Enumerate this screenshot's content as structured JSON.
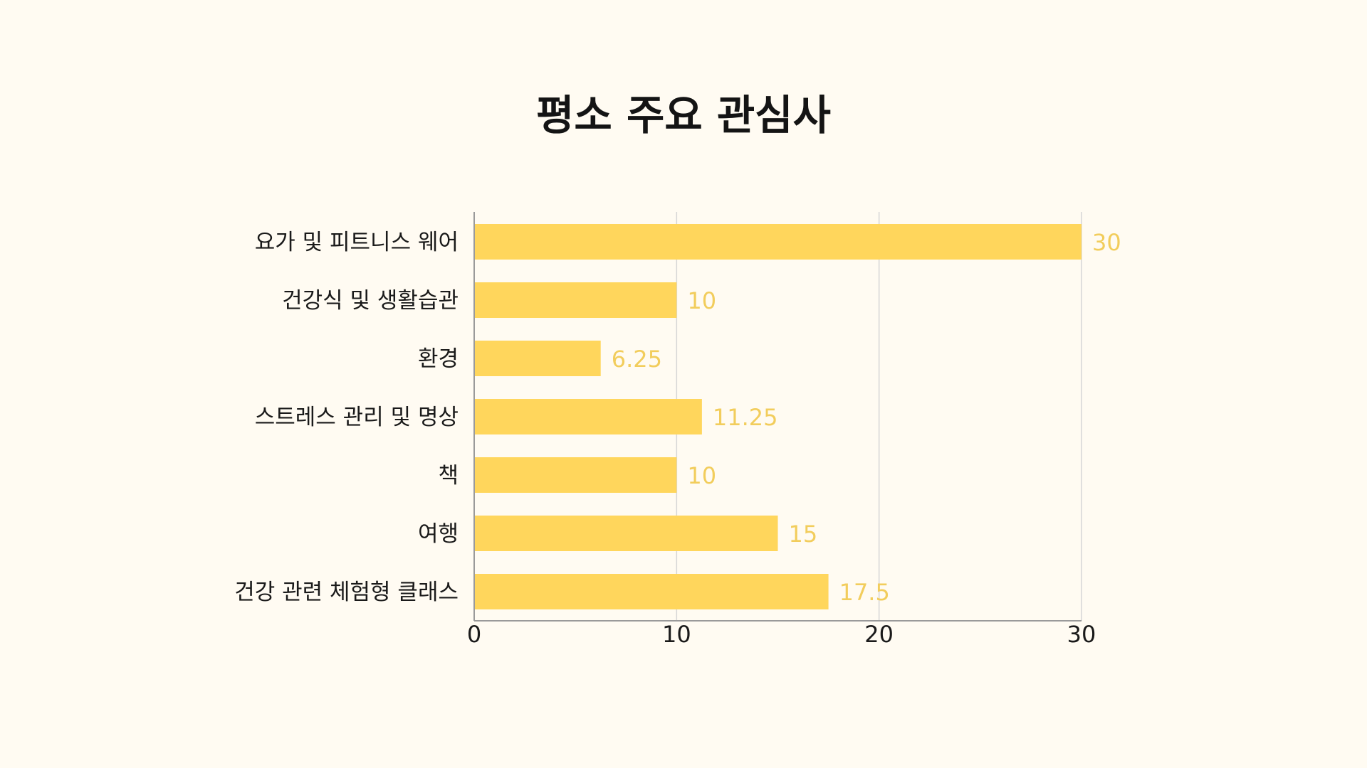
{
  "chart_data": {
    "type": "bar",
    "orientation": "horizontal",
    "title": "평소 주요 관심사",
    "xlabel": "",
    "ylabel": "",
    "categories": [
      "요가 및 피트니스 웨어",
      "건강식 및 생활습관",
      "환경",
      "스트레스 관리 및 명상",
      "책",
      "여행",
      "건강 관련 체험형 클래스"
    ],
    "values": [
      30,
      10,
      6.25,
      11.25,
      10,
      15,
      17.5
    ],
    "value_labels": [
      "30",
      "10",
      "6.25",
      "11.25",
      "10",
      "15",
      "17.5"
    ],
    "xlim": [
      0,
      30
    ],
    "xticks": [
      "0",
      "10",
      "20",
      "30"
    ],
    "grid": "vertical",
    "legend": "none",
    "colors": {
      "bar": "#FFD65C",
      "value_label": "#F2CD5C",
      "grid": "#D6D6D6",
      "axis": "#9A9A9A",
      "background": "#FFFBF2"
    }
  }
}
